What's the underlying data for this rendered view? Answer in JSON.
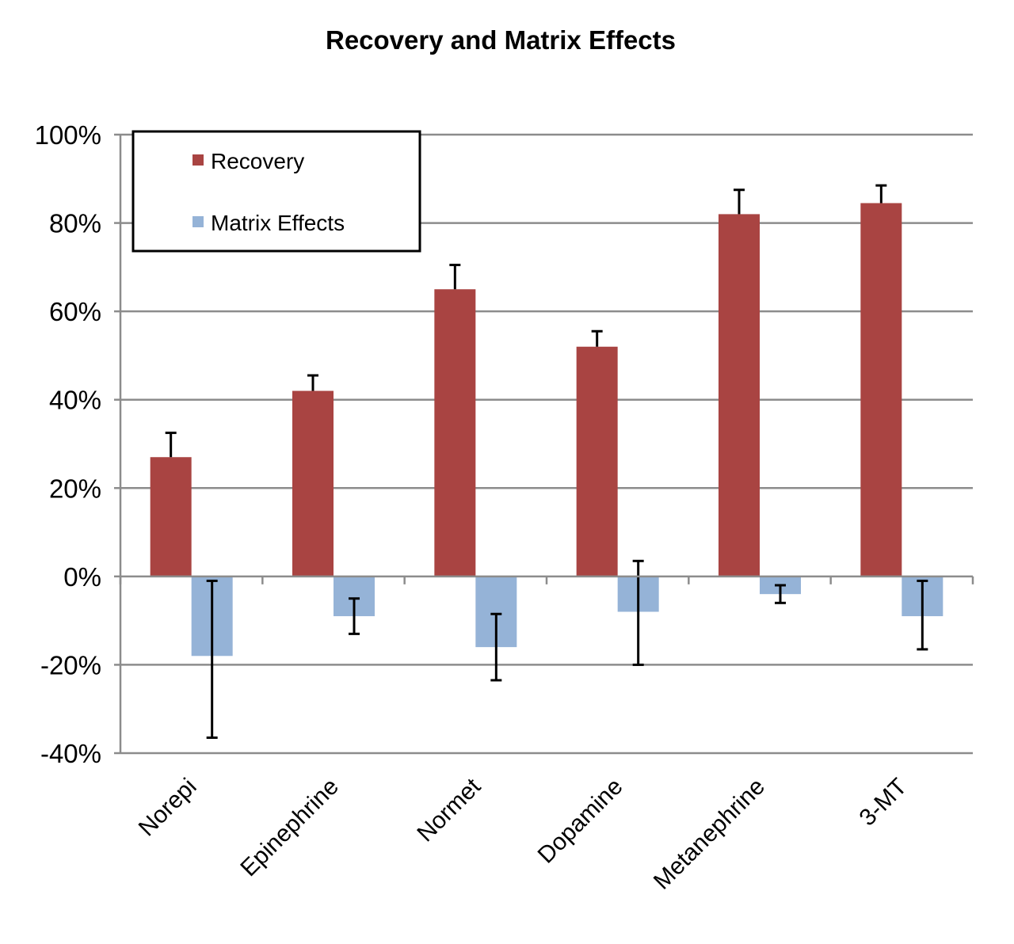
{
  "chart_data": {
    "type": "bar",
    "title": "Recovery and Matrix Effects",
    "xlabel": "",
    "ylabel": "",
    "categories": [
      "Norepi",
      "Epinephrine",
      "Normet",
      "Dopamine",
      "Metanephrine",
      "3-MT"
    ],
    "series": [
      {
        "name": "Recovery",
        "color": "#A94442",
        "values": [
          27,
          42,
          65,
          52,
          82,
          84.5
        ],
        "error_plus": [
          5.5,
          3.5,
          5.5,
          3.5,
          5.5,
          4
        ]
      },
      {
        "name": "Matrix Effects",
        "color": "#95B3D7",
        "values": [
          -18,
          -9,
          -16,
          -8,
          -4,
          -9
        ],
        "error_plus": [
          17,
          4,
          7.5,
          11.5,
          2,
          8
        ],
        "error_minus": [
          18.5,
          4,
          7.5,
          12,
          2,
          7.5
        ]
      }
    ],
    "ylim": [
      -40,
      100
    ],
    "yticks": [
      "100%",
      "80%",
      "60%",
      "40%",
      "20%",
      "0%",
      "-20%",
      "-40%"
    ],
    "ytick_values": [
      100,
      80,
      60,
      40,
      20,
      0,
      -20,
      -40
    ],
    "grid": true,
    "legend_position": "top-left"
  }
}
